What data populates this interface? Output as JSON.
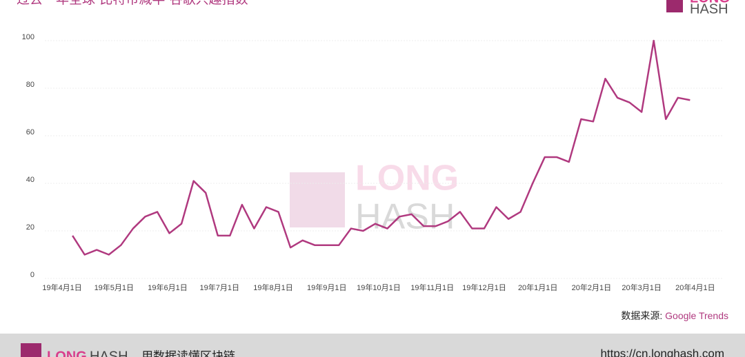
{
  "chart_data": {
    "type": "line",
    "title": "过去一年全球“比特币减半”谷歌兴趣指数",
    "source_label": "数据来源:",
    "source": "Google Trends",
    "x": [
      "2019-04-07",
      "2019-04-14",
      "2019-04-21",
      "2019-04-28",
      "2019-05-05",
      "2019-05-12",
      "2019-05-19",
      "2019-05-26",
      "2019-06-02",
      "2019-06-09",
      "2019-06-16",
      "2019-06-23",
      "2019-06-30",
      "2019-07-07",
      "2019-07-14",
      "2019-07-21",
      "2019-07-28",
      "2019-08-04",
      "2019-08-11",
      "2019-08-18",
      "2019-08-25",
      "2019-09-01",
      "2019-09-08",
      "2019-09-15",
      "2019-09-22",
      "2019-09-29",
      "2019-10-06",
      "2019-10-13",
      "2019-10-20",
      "2019-10-27",
      "2019-11-03",
      "2019-11-10",
      "2019-11-17",
      "2019-11-24",
      "2019-12-01",
      "2019-12-08",
      "2019-12-15",
      "2019-12-22",
      "2019-12-29",
      "2020-01-05",
      "2020-01-12",
      "2020-01-19",
      "2020-01-26",
      "2020-02-02",
      "2020-02-09",
      "2020-02-16",
      "2020-02-23",
      "2020-03-01",
      "2020-03-08",
      "2020-03-15",
      "2020-03-22",
      "2020-03-29"
    ],
    "series": [
      {
        "color": "#b0397f",
        "values": [
          18,
          10,
          12,
          10,
          14,
          21,
          26,
          28,
          19,
          23,
          41,
          36,
          18,
          18,
          31,
          21,
          30,
          28,
          13,
          16,
          14,
          14,
          14,
          21,
          20,
          23,
          21,
          26,
          27,
          22,
          22,
          24,
          28,
          21,
          21,
          30,
          25,
          28,
          40,
          51,
          51,
          49,
          67,
          66,
          84,
          76,
          74,
          70,
          100,
          67,
          76,
          75
        ]
      }
    ],
    "xlim": [
      "2019-03-22",
      "2020-04-17"
    ],
    "xticks": [
      {
        "value": "2019-04-01",
        "label": "19年4月1日"
      },
      {
        "value": "2019-05-01",
        "label": "19年5月1日"
      },
      {
        "value": "2019-06-01",
        "label": "19年6月1日"
      },
      {
        "value": "2019-07-01",
        "label": "19年7月1日"
      },
      {
        "value": "2019-08-01",
        "label": "19年8月1日"
      },
      {
        "value": "2019-09-01",
        "label": "19年9月1日"
      },
      {
        "value": "2019-10-01",
        "label": "19年10月1日"
      },
      {
        "value": "2019-11-01",
        "label": "19年11月1日"
      },
      {
        "value": "2019-12-01",
        "label": "19年12月1日"
      },
      {
        "value": "2020-01-01",
        "label": "20年1月1日"
      },
      {
        "value": "2020-02-01",
        "label": "20年2月1日"
      },
      {
        "value": "2020-03-01",
        "label": "20年3月1日"
      },
      {
        "value": "2020-04-01",
        "label": "20年4月1日"
      }
    ],
    "ylim": [
      0,
      100
    ],
    "yticks": [
      0,
      20,
      40,
      60,
      80,
      100
    ],
    "grid": true
  },
  "logo": {
    "long": "LONG",
    "hash": "HASH"
  },
  "footer": {
    "long": "LONG",
    "hash": "HASH",
    "slogan": "用数据读懂区块链",
    "url": "https://cn.longhash.com"
  }
}
